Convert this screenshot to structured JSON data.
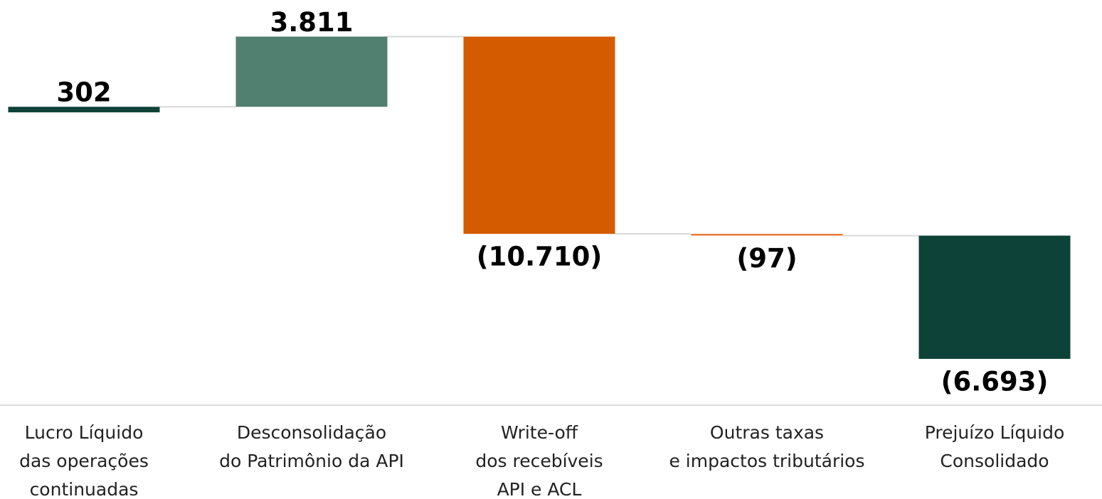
{
  "chart_data": {
    "type": "waterfall",
    "categories": [
      [
        "Lucro Líquido",
        "das operações",
        "continuadas"
      ],
      [
        "Desconsolidação",
        "do Patrimônio da API"
      ],
      [
        "Write-off",
        "dos recebíveis",
        "API e ACL"
      ],
      [
        "Outras taxas",
        "e impactos tributários"
      ],
      [
        "Prejuízo Líquido",
        "Consolidado"
      ]
    ],
    "values": [
      302,
      3811,
      -10710,
      -97,
      -6693
    ],
    "value_labels": [
      "302",
      "3.811",
      "(10.710)",
      "(97)",
      "(6.693)"
    ],
    "colors": [
      "#0d4238",
      "#528070",
      "#d45b00",
      "#e8793a",
      "#0d4238"
    ],
    "ylim": [
      -15900,
      6100
    ]
  }
}
